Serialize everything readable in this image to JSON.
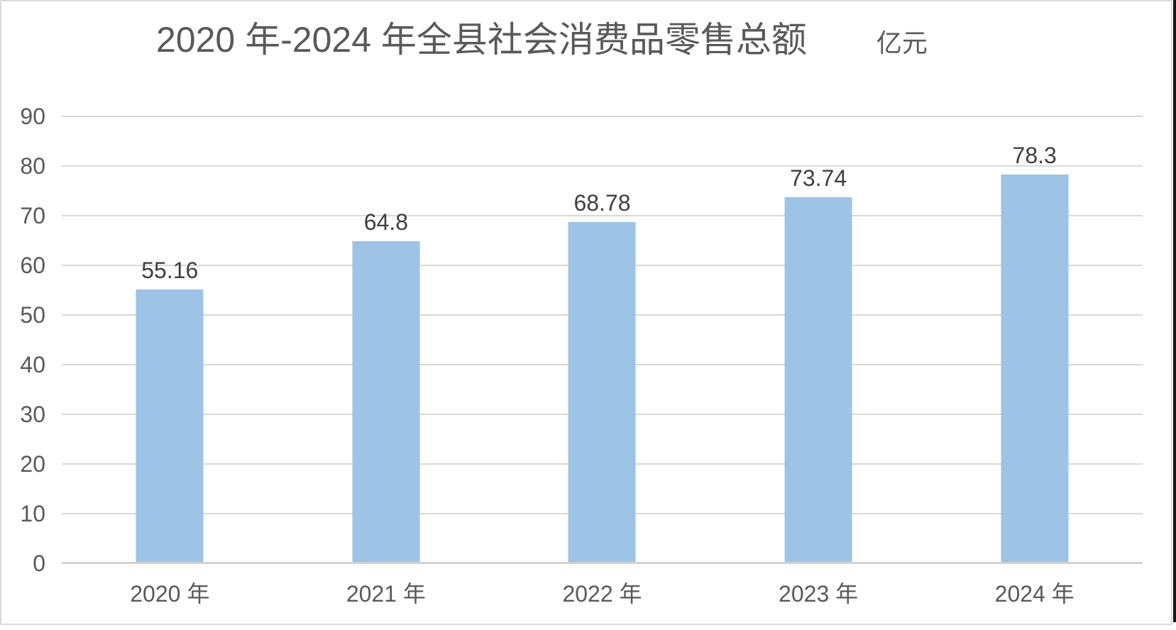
{
  "chart_data": {
    "type": "bar",
    "title": "2020 年-2024 年全县社会消费品零售总额",
    "unit_label": "亿元",
    "categories": [
      "2020 年",
      "2021 年",
      "2022 年",
      "2023 年",
      "2024 年"
    ],
    "values": [
      55.16,
      64.8,
      68.78,
      73.74,
      78.3
    ],
    "data_labels": [
      "55.16",
      "64.8",
      "68.78",
      "73.74",
      "78.3"
    ],
    "ylim": [
      0,
      90
    ],
    "yticks": [
      0,
      10,
      20,
      30,
      40,
      50,
      60,
      70,
      80,
      90
    ],
    "grid": true,
    "legend": "none",
    "colors": {
      "bar_fill": "#9DC3E6",
      "gridline": "#D9D9D9",
      "baseline": "#D2D2D2",
      "axis_text": "#595959",
      "title_text": "#595959",
      "value_label_text": "#3F3F3F",
      "chart_border": "#D9D9D9",
      "background": "#FFFFFF",
      "right_edge": "#151515"
    }
  }
}
